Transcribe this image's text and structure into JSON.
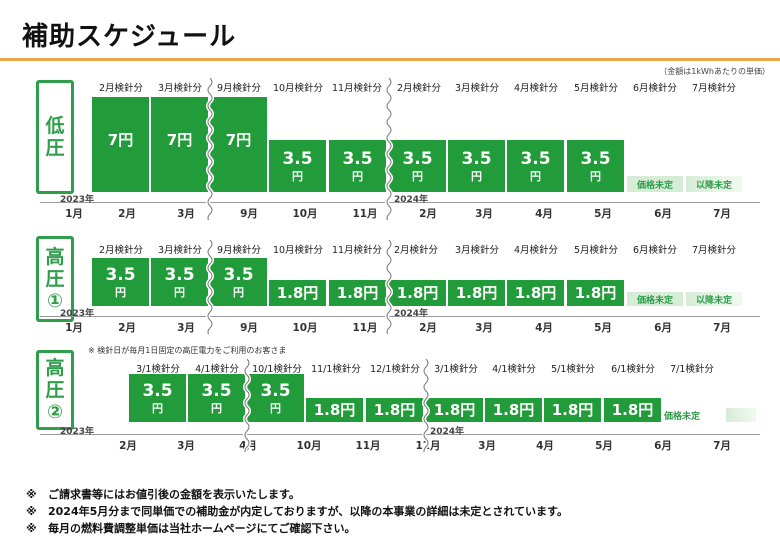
{
  "title": "補助スケジュール",
  "unit_note": "（金額は1kWhあたりの単価）",
  "sections": [
    {
      "label": [
        "低",
        "圧"
      ],
      "columns": [
        "2月検針分",
        "3月検針分",
        "9月検針分",
        "10月検針分",
        "11月検針分",
        "2月検針分",
        "3月検針分",
        "4月検針分",
        "5月検針分",
        "6月検針分",
        "7月検針分"
      ],
      "months": [
        "1月",
        "2月",
        "3月",
        "9月",
        "10月",
        "11月",
        "2月",
        "3月",
        "4月",
        "5月",
        "6月",
        "7月"
      ],
      "year_start": "2023年",
      "year_mid": "2024年",
      "bars": [
        {
          "value": "7",
          "unit": "円",
          "inline": true
        },
        {
          "value": "7",
          "unit": "円",
          "inline": true
        },
        {
          "value": "7",
          "unit": "円",
          "inline": true
        },
        {
          "value": "3.5",
          "unit": "円"
        },
        {
          "value": "3.5",
          "unit": "円"
        },
        {
          "value": "3.5",
          "unit": "円"
        },
        {
          "value": "3.5",
          "unit": "円"
        },
        {
          "value": "3.5",
          "unit": "円"
        },
        {
          "value": "3.5",
          "unit": "円"
        }
      ],
      "pending": [
        "価格未定",
        "以降未定"
      ]
    },
    {
      "label": [
        "高",
        "圧",
        "①"
      ],
      "columns": [
        "2月検針分",
        "3月検針分",
        "9月検針分",
        "10月検針分",
        "11月検針分",
        "2月検針分",
        "3月検針分",
        "4月検針分",
        "5月検針分",
        "6月検針分",
        "7月検針分"
      ],
      "months": [
        "1月",
        "2月",
        "3月",
        "9月",
        "10月",
        "11月",
        "2月",
        "3月",
        "4月",
        "5月",
        "6月",
        "7月"
      ],
      "year_start": "2023年",
      "year_mid": "2024年",
      "bars": [
        {
          "value": "3.5",
          "unit": "円"
        },
        {
          "value": "3.5",
          "unit": "円"
        },
        {
          "value": "3.5",
          "unit": "円"
        },
        {
          "value": "1.8",
          "unit": "円",
          "inline": true
        },
        {
          "value": "1.8",
          "unit": "円",
          "inline": true
        },
        {
          "value": "1.8",
          "unit": "円",
          "inline": true
        },
        {
          "value": "1.8",
          "unit": "円",
          "inline": true
        },
        {
          "value": "1.8",
          "unit": "円",
          "inline": true
        },
        {
          "value": "1.8",
          "unit": "円",
          "inline": true
        }
      ],
      "pending": [
        "価格未定",
        "以降未定"
      ]
    },
    {
      "label": [
        "高",
        "圧",
        "②"
      ],
      "note": "※ 検針日が毎月1日固定の高圧電力をご利用のお客さま",
      "columns": [
        "3/1検針分",
        "4/1検針分",
        "10/1検針分",
        "11/1検針分",
        "12/1検針分",
        "3/1検針分",
        "4/1検針分",
        "5/1検針分",
        "6/1検針分",
        "7/1検針分"
      ],
      "months": [
        "2月",
        "3月",
        "4月",
        "10月",
        "11月",
        "12月",
        "3月",
        "4月",
        "5月",
        "6月",
        "7月"
      ],
      "year_start": "2023年",
      "year_mid": "2024年",
      "bars": [
        {
          "value": "3.5",
          "unit": "円"
        },
        {
          "value": "3.5",
          "unit": "円"
        },
        {
          "value": "3.5",
          "unit": "円"
        },
        {
          "value": "1.8",
          "unit": "円",
          "inline": true
        },
        {
          "value": "1.8",
          "unit": "円",
          "inline": true
        },
        {
          "value": "1.8",
          "unit": "円",
          "inline": true
        },
        {
          "value": "1.8",
          "unit": "円",
          "inline": true
        },
        {
          "value": "1.8",
          "unit": "円",
          "inline": true
        },
        {
          "value": "1.8",
          "unit": "円",
          "inline": true
        }
      ],
      "pending": [
        "価格未定"
      ]
    }
  ],
  "footnotes": [
    {
      "mark": "※",
      "text": "ご請求書等にはお値引後の金額を表示いたします。"
    },
    {
      "mark": "※",
      "text": "2024年5月分まで同単価での補助金が内定しておりますが、以降の本事業の詳細は未定とされています。"
    },
    {
      "mark": "※",
      "text": "毎月の燃料費調整単価は当社ホームページにてご確認下さい。"
    }
  ],
  "colors": {
    "bar": "#229c3a",
    "accent": "#f0a64a",
    "pale": "#d6ecd6"
  }
}
